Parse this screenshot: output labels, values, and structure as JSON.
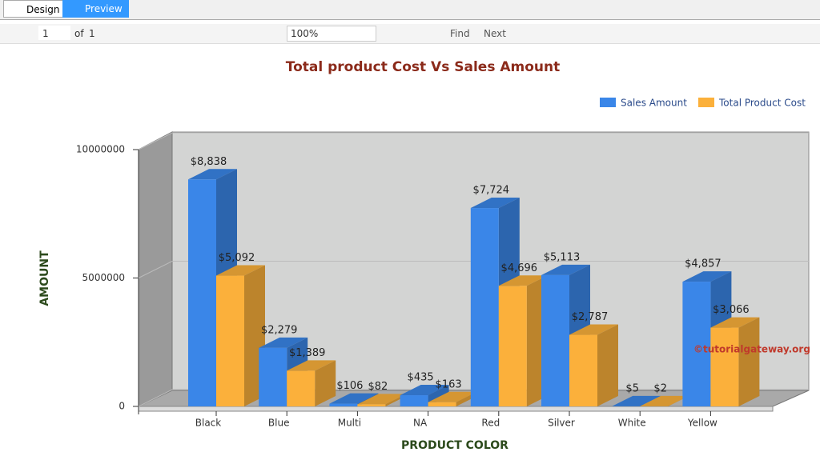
{
  "ui": {
    "tabs": [
      "Design",
      "Preview"
    ],
    "page_number": "1",
    "page_of": "of",
    "page_total": "1",
    "zoom": "100%",
    "find": "Find",
    "next": "Next"
  },
  "chart_data": {
    "type": "bar3d",
    "title": "Total product Cost Vs Sales Amount",
    "x_label": "PRODUCT COLOR",
    "y_label": "AMOUNT",
    "categories": [
      "Black",
      "Blue",
      "Multi",
      "NA",
      "Red",
      "Silver",
      "White",
      "Yellow"
    ],
    "series": [
      {
        "name": "Sales Amount",
        "color": "#3a86e8",
        "values": [
          8838000,
          2279000,
          106000,
          435000,
          7724000,
          5113000,
          5000,
          4857000
        ],
        "value_labels": [
          "$8,838",
          "$2,279",
          "$106",
          "$435",
          "$7,724",
          "$5,113",
          "$5",
          "$4,857"
        ]
      },
      {
        "name": "Total Product Cost",
        "color": "#fbb03b",
        "values": [
          5092000,
          1389000,
          82000,
          163000,
          4696000,
          2787000,
          2000,
          3066000
        ],
        "value_labels": [
          "$5,092",
          "$1,389",
          "$82",
          "$163",
          "$4,696",
          "$2,787",
          "$2",
          "$3,066"
        ]
      }
    ],
    "ylim": [
      0,
      10000000
    ],
    "yticks": [
      0,
      5000000,
      10000000
    ],
    "grid": true,
    "legend": "top-right",
    "watermark": "©tutorialgateway.org"
  }
}
